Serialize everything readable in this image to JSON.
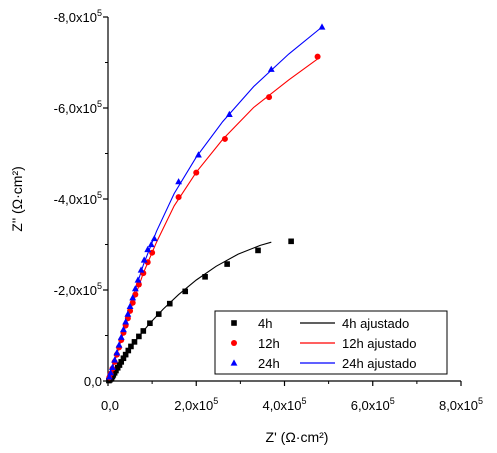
{
  "chart_data": {
    "type": "scatter",
    "title": "",
    "xlabel": "Z' (Ω·cm²)",
    "ylabel": "Z'' (Ω·cm²)",
    "xlim": [
      0,
      800000
    ],
    "ylim": [
      0,
      -800000
    ],
    "x_ticks": [
      {
        "value": 0,
        "label": "0,0"
      },
      {
        "value": 200000,
        "label": "2,0x10",
        "exp": "5"
      },
      {
        "value": 400000,
        "label": "4,0x10",
        "exp": "5"
      },
      {
        "value": 600000,
        "label": "6,0x10",
        "exp": "5"
      },
      {
        "value": 800000,
        "label": "8,0x10",
        "exp": "5"
      }
    ],
    "y_ticks": [
      {
        "value": 0,
        "label": "0,0"
      },
      {
        "value": -200000,
        "label": "-2,0x10",
        "exp": "5"
      },
      {
        "value": -400000,
        "label": "-4,0x10",
        "exp": "5"
      },
      {
        "value": -600000,
        "label": "-6,0x10",
        "exp": "5"
      },
      {
        "value": -800000,
        "label": "-8,0x10",
        "exp": "5"
      }
    ],
    "legend_position": "bottom-right",
    "grid": false,
    "series": [
      {
        "name": "4h",
        "kind": "points",
        "marker": "square",
        "color": "#000000",
        "x": [
          2000,
          4000,
          6000,
          8000,
          10000,
          12000,
          15000,
          18000,
          22000,
          26000,
          30000,
          35000,
          40000,
          46000,
          52000,
          60000,
          70000,
          80000,
          95000,
          115000,
          140000,
          175000,
          220000,
          270000,
          340000,
          415000
        ],
        "y": [
          -1000,
          -2500,
          -4500,
          -7000,
          -10000,
          -13500,
          -18000,
          -23000,
          -29000,
          -35000,
          -42000,
          -50000,
          -58000,
          -67000,
          -76000,
          -86000,
          -98000,
          -110000,
          -127000,
          -147000,
          -170000,
          -197000,
          -229000,
          -257000,
          -287000,
          -307000
        ]
      },
      {
        "name": "4h ajustado",
        "kind": "line",
        "color": "#000000",
        "x": [
          2000,
          10000,
          20000,
          35000,
          50000,
          70000,
          95000,
          125000,
          160000,
          200000,
          245000,
          295000,
          345000,
          370000
        ],
        "y": [
          -1000,
          -10000,
          -26000,
          -50000,
          -73000,
          -98000,
          -127000,
          -158000,
          -190000,
          -222000,
          -252000,
          -279000,
          -298000,
          -305000
        ]
      },
      {
        "name": "12h",
        "kind": "points",
        "marker": "circle",
        "color": "#ff0000",
        "x": [
          3000,
          6000,
          10000,
          15000,
          20000,
          25000,
          30000,
          35000,
          40000,
          45000,
          50000,
          56000,
          62000,
          70000,
          80000,
          90000,
          100000,
          160000,
          200000,
          265000,
          365000,
          475000
        ],
        "y": [
          -8000,
          -16000,
          -27000,
          -42000,
          -58000,
          -74000,
          -90000,
          -106000,
          -122000,
          -138000,
          -154000,
          -172000,
          -190000,
          -212000,
          -237000,
          -261000,
          -282000,
          -404000,
          -458000,
          -532000,
          -624000,
          -713000
        ]
      },
      {
        "name": "12h ajustado",
        "kind": "line",
        "color": "#ff0000",
        "x": [
          3000,
          10000,
          20000,
          35000,
          55000,
          80000,
          110000,
          150000,
          200000,
          260000,
          330000,
          410000,
          475000
        ],
        "y": [
          -8000,
          -27000,
          -58000,
          -106000,
          -168000,
          -237000,
          -305000,
          -385000,
          -459000,
          -531000,
          -601000,
          -662000,
          -708000
        ]
      },
      {
        "name": "24h",
        "kind": "points",
        "marker": "triangle",
        "color": "#0000ff",
        "x": [
          3000,
          6000,
          10000,
          15000,
          20000,
          25000,
          30000,
          35000,
          40000,
          45000,
          50000,
          56000,
          62000,
          68000,
          75000,
          82000,
          90000,
          98000,
          105000,
          160000,
          205000,
          275000,
          370000,
          485000
        ],
        "y": [
          -9000,
          -18000,
          -30000,
          -46000,
          -62000,
          -79000,
          -96000,
          -113000,
          -130000,
          -147000,
          -164000,
          -183000,
          -203000,
          -222000,
          -244000,
          -266000,
          -289000,
          -300000,
          -313000,
          -438000,
          -497000,
          -586000,
          -685000,
          -778000
        ]
      },
      {
        "name": "24h ajustado",
        "kind": "line",
        "color": "#0000ff",
        "x": [
          3000,
          10000,
          20000,
          35000,
          55000,
          80000,
          110000,
          150000,
          200000,
          260000,
          330000,
          410000,
          485000
        ],
        "y": [
          -9000,
          -30000,
          -62000,
          -113000,
          -180000,
          -255000,
          -329000,
          -412000,
          -492000,
          -570000,
          -647000,
          -719000,
          -778000
        ]
      }
    ]
  }
}
